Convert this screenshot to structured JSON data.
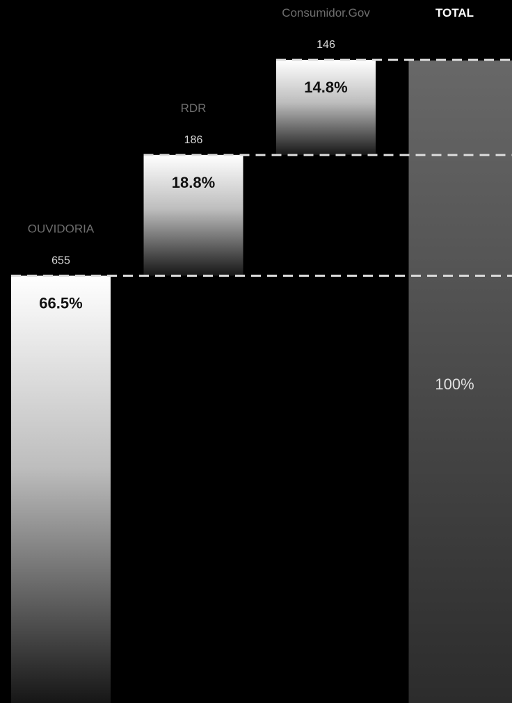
{
  "chart_data": {
    "type": "bar",
    "subtype": "waterfall",
    "categories": [
      "OUVIDORIA",
      "RDR",
      "Consumidor.Gov",
      "TOTAL"
    ],
    "counts": [
      "655",
      "186",
      "146",
      ""
    ],
    "percent_labels": [
      "66.5%",
      "18.8%",
      "14.8%",
      "100%"
    ],
    "values": [
      66.5,
      18.8,
      14.8,
      100
    ],
    "total_index": 3,
    "ylim": [
      0,
      100
    ],
    "grid": false,
    "legend": "none",
    "colors": {
      "background": "#000000",
      "bar_top": "#ffffff",
      "bar_bottom": "#161616",
      "total_top": "#686868",
      "total_bottom": "#2c2c2c",
      "dash": "#dcdcdc"
    }
  }
}
